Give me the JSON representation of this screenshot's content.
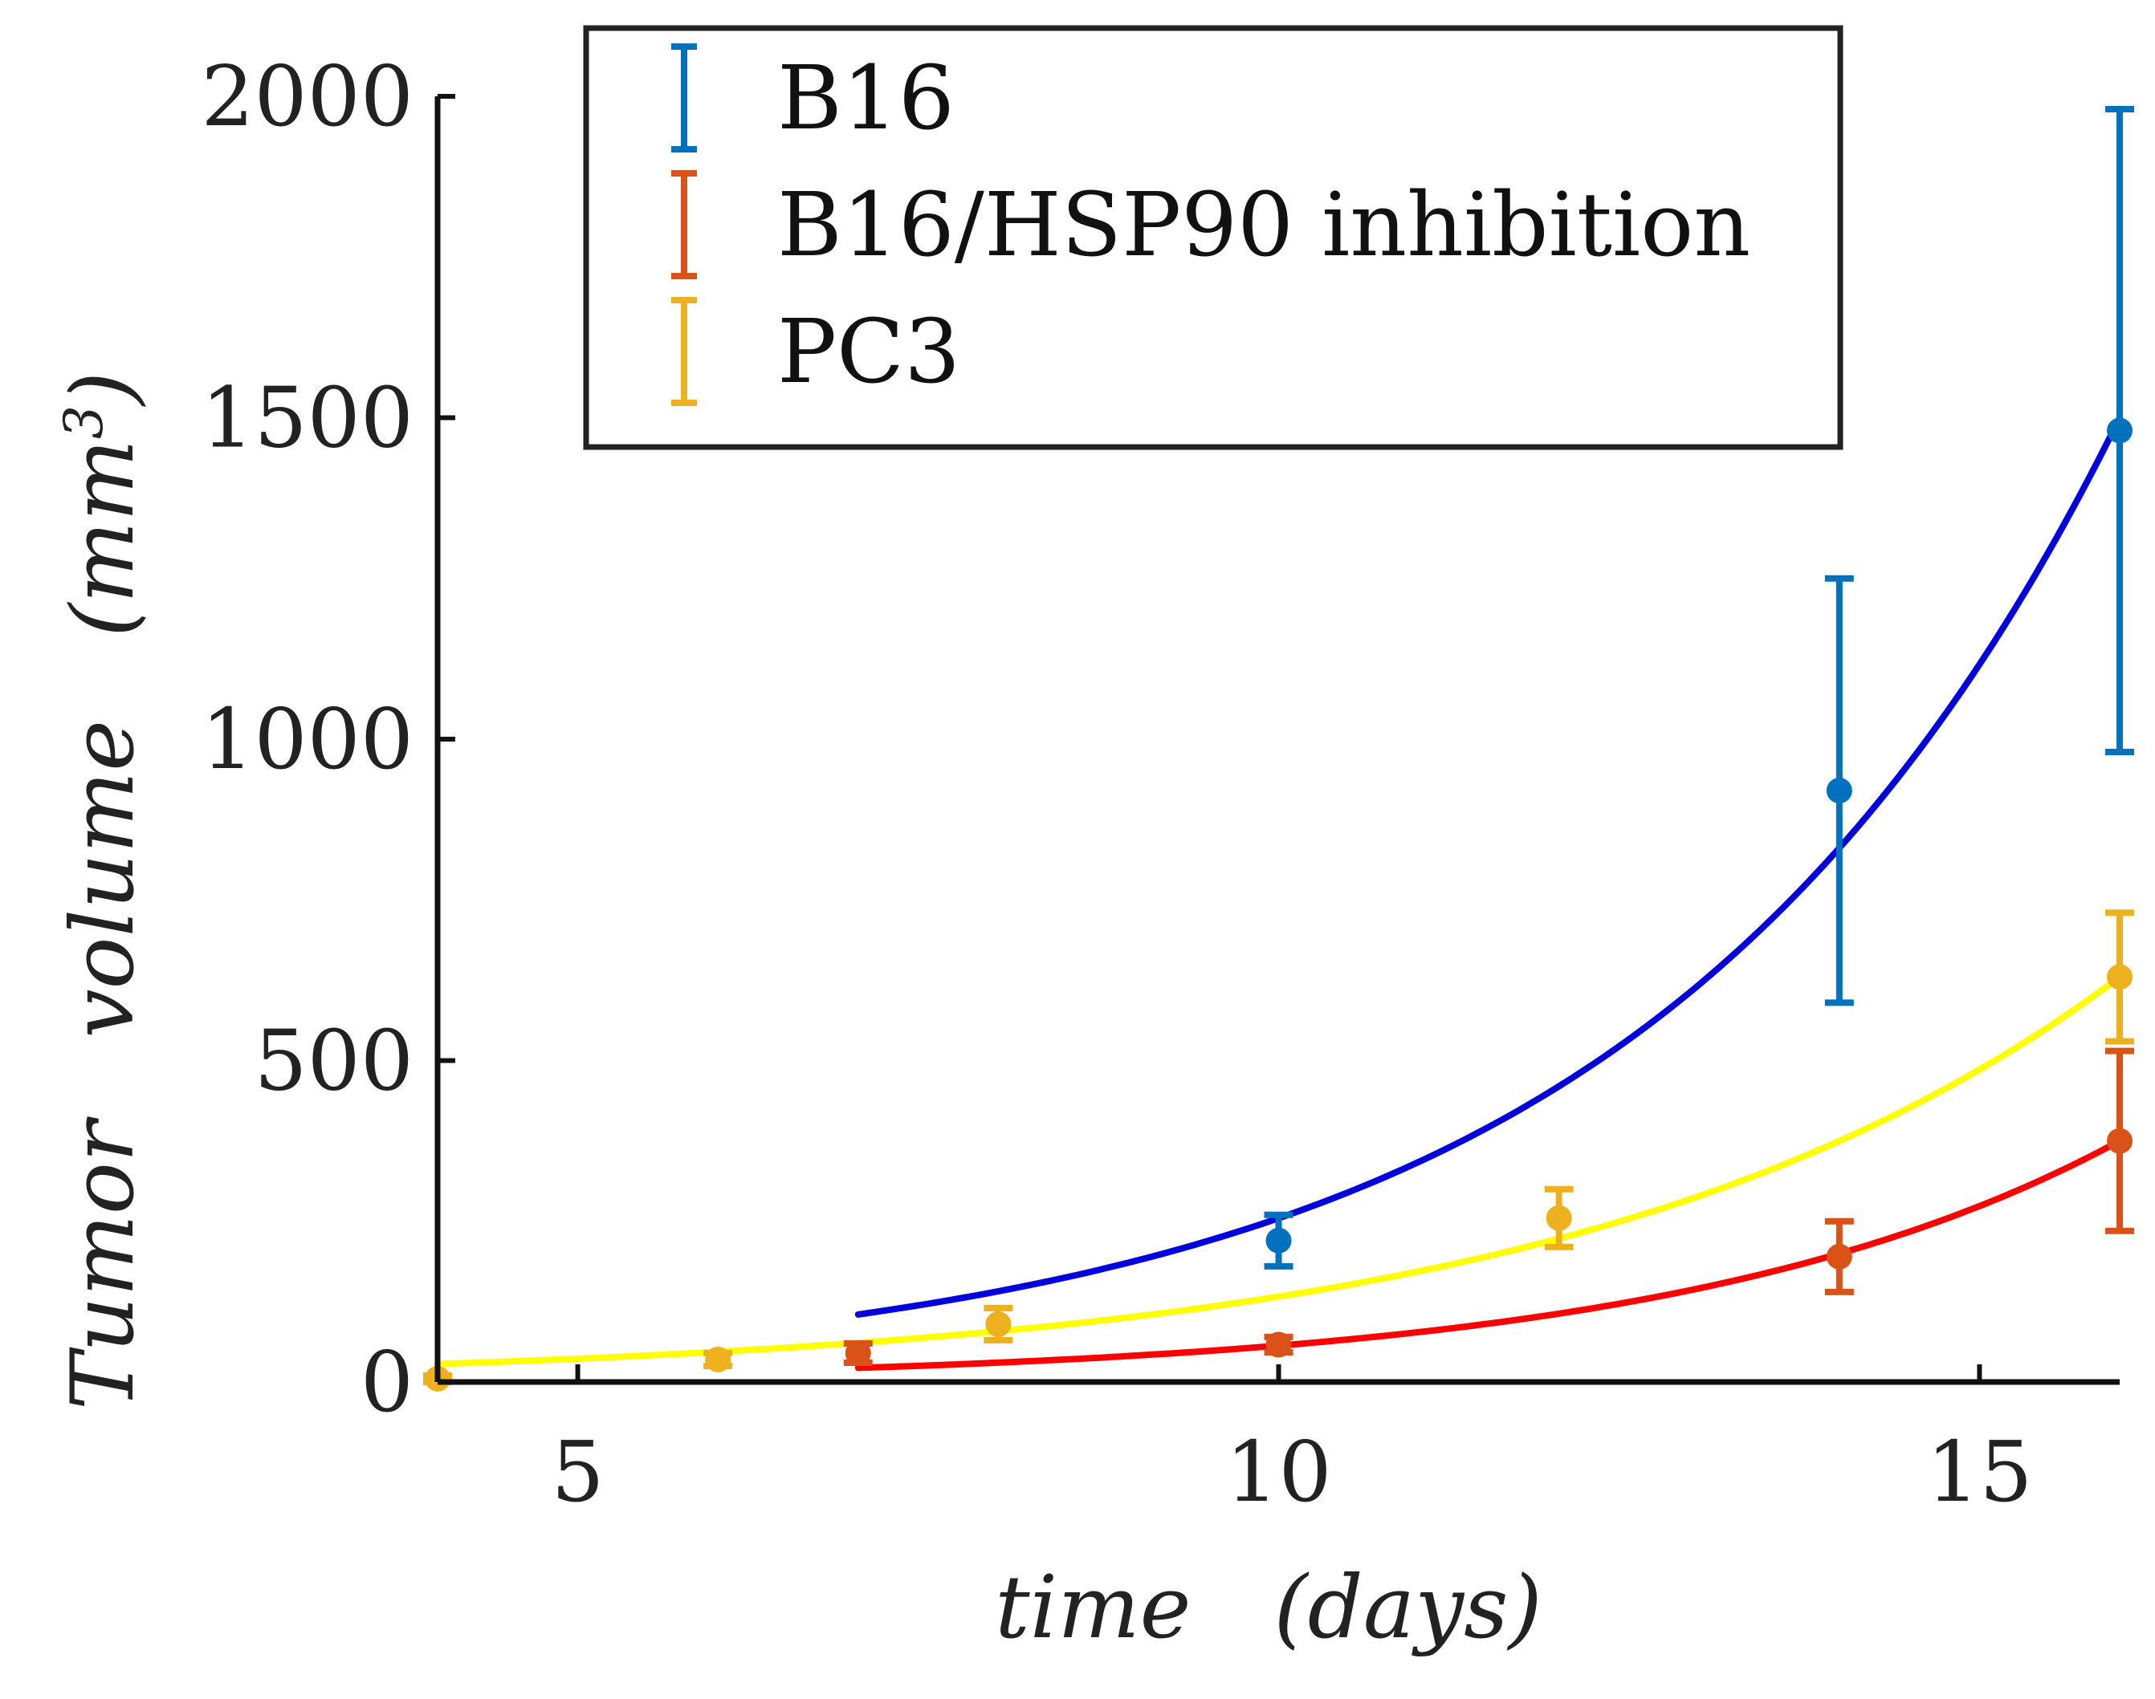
{
  "chart_data": {
    "type": "scatter",
    "title": "",
    "xlabel": "time   (days)",
    "ylabel": "Tumor   volume   (mm",
    "ylabel_superscript": "3",
    "ylabel_close": ")",
    "xlim": [
      4,
      16
    ],
    "ylim": [
      0,
      2000
    ],
    "xticks": [
      5,
      10,
      15
    ],
    "yticks": [
      0,
      500,
      1000,
      1500,
      2000
    ],
    "xtick_labels": [
      "5",
      "10",
      "15"
    ],
    "ytick_labels": [
      "0",
      "500",
      "1000",
      "1500",
      "2000"
    ],
    "grid": false,
    "legend_position": "top",
    "series": [
      {
        "name": "B16",
        "color": "#0072BD",
        "fit_color": "#0000DD",
        "points": [
          {
            "x": 10,
            "y": 220,
            "err": 40
          },
          {
            "x": 14,
            "y": 920,
            "err": 330
          },
          {
            "x": 16,
            "y": 1480,
            "err": 500
          }
        ],
        "fit": {
          "x_start": 7,
          "x_end": 16,
          "y_start": 105,
          "y_end": 1500
        }
      },
      {
        "name": "B16/HSP90 inhibition",
        "color": "#D95319",
        "fit_color": "#FF0000",
        "points": [
          {
            "x": 7,
            "y": 45,
            "err": 15
          },
          {
            "x": 10,
            "y": 58,
            "err": 12
          },
          {
            "x": 14,
            "y": 195,
            "err": 55
          },
          {
            "x": 16,
            "y": 375,
            "err": 140
          }
        ],
        "fit": {
          "x_start": 7,
          "x_end": 16,
          "y_start": 22,
          "y_end": 375
        }
      },
      {
        "name": "PC3",
        "color": "#EDB120",
        "fit_color": "#FFFF00",
        "points": [
          {
            "x": 4,
            "y": 5,
            "err": 5
          },
          {
            "x": 6,
            "y": 35,
            "err": 10
          },
          {
            "x": 8,
            "y": 90,
            "err": 25
          },
          {
            "x": 12,
            "y": 255,
            "err": 45
          },
          {
            "x": 16,
            "y": 630,
            "err": 100
          }
        ],
        "fit": {
          "x_start": 4,
          "x_end": 16,
          "y_start": 28,
          "y_end": 630
        }
      }
    ]
  }
}
